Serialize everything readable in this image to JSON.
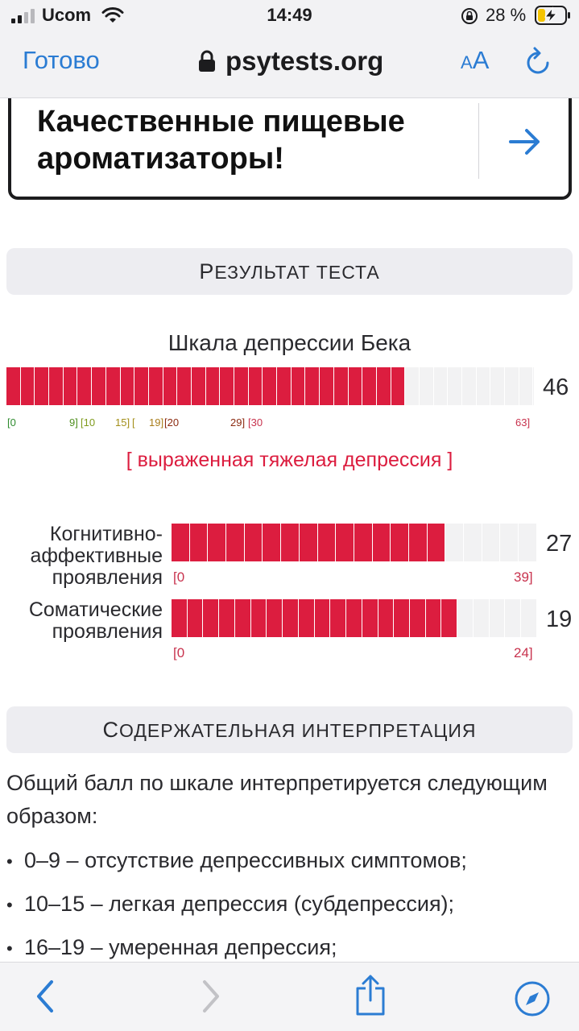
{
  "status_bar": {
    "carrier": "Ucom",
    "time": "14:49",
    "battery_percent": "28 %",
    "battery_level": 0.28
  },
  "browser": {
    "done_label": "Готово",
    "url": "psytests.org",
    "text_size_small": "A",
    "text_size_big": "A",
    "accent_color": "#2b7cd3"
  },
  "ad": {
    "text": "Качественные пищевые ароматизаторы!"
  },
  "result_section": {
    "header_cap": "Р",
    "header_rest": "езультат теста"
  },
  "main_scale": {
    "title": "Шкала депрессии Бека",
    "value": "46",
    "score": 46,
    "max": 63,
    "cells": 37,
    "filled_cells": 28,
    "ticks": [
      {
        "label": "[0",
        "color": "#2e8b2e"
      },
      {
        "label": "9]",
        "color": "#4e8f1e"
      },
      {
        "label": "[10",
        "color": "#7f9a1c"
      },
      {
        "label": "15]",
        "color": "#a38f1a"
      },
      {
        "label": "[",
        "color": "#a38f1a"
      },
      {
        "label": "19]",
        "color": "#a97d1a"
      },
      {
        "label": "[20",
        "color": "#8b2a10"
      },
      {
        "label": "29]",
        "color": "#8b2a10"
      },
      {
        "label": "[30",
        "color": "#c8334e"
      },
      {
        "label": "63]",
        "color": "#c8334e"
      }
    ],
    "verdict": "[ выраженная тяжелая депрессия ]",
    "fill_color": "#dc1d3f"
  },
  "sub_scales": [
    {
      "label": "Когнитивно-аффективные проявления",
      "label_lines": [
        "Когнитивно-",
        "аффективные",
        "проявления"
      ],
      "value": "27",
      "score": 27,
      "max": 39,
      "cells": 20,
      "filled_cells": 15,
      "tick_min": "[0",
      "tick_max": "39]"
    },
    {
      "label": "Соматические проявления",
      "label_lines": [
        "Соматические",
        "проявления"
      ],
      "value": "19",
      "score": 19,
      "max": 24,
      "cells": 23,
      "filled_cells": 18,
      "tick_min": "[0",
      "tick_max": "24]"
    }
  ],
  "interpretation_section": {
    "header_cap": "С",
    "header_rest": "одержательная интерпретация",
    "intro": "Общий балл по шкале интерпретируется следующим образом:",
    "items": [
      "0–9 – отсутствие депрессивных симптомов;",
      "10–15 – легкая депрессия (субдепрессия);",
      "16–19 – умеренная депрессия;"
    ]
  },
  "toolbar_icons": {
    "back": "chevron-left-icon",
    "forward": "chevron-right-icon",
    "share": "share-icon",
    "compass": "compass-icon"
  }
}
